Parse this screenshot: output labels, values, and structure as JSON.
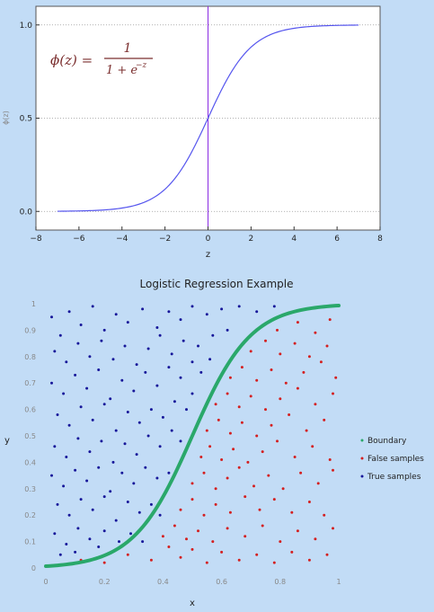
{
  "chart_data": [
    {
      "type": "line",
      "title": "",
      "annotation": {
        "lhs": "ϕ(z) =",
        "numerator": "1",
        "denominator_base": "1 + e",
        "denominator_exp": "−z"
      },
      "xlabel": "z",
      "ylabel": "ϕ(z)",
      "xlim": [
        -8,
        8
      ],
      "ylim": [
        -0.1,
        1.1
      ],
      "x_ticks": [
        "−8",
        "−6",
        "−4",
        "−2",
        "0",
        "2",
        "4",
        "6",
        "8"
      ],
      "y_ticks": [
        "0.0",
        "0.5",
        "1.0"
      ],
      "grid": "dotted horizontal",
      "vertical_line_at": 0,
      "series": [
        {
          "function": "sigmoid",
          "x": [
            -7,
            -6,
            -5,
            -4,
            -3,
            -2,
            -1,
            0,
            1,
            2,
            3,
            4,
            5,
            6,
            7
          ],
          "y": [
            0.0009,
            0.0025,
            0.0067,
            0.018,
            0.047,
            0.119,
            0.269,
            0.5,
            0.731,
            0.881,
            0.953,
            0.982,
            0.993,
            0.9975,
            0.9991
          ],
          "color": "#5555ee"
        }
      ]
    },
    {
      "type": "scatter",
      "title": "Logistic Regression Example",
      "xlabel": "x",
      "ylabel": "y",
      "xlim": [
        0,
        1
      ],
      "ylim": [
        0,
        1
      ],
      "x_ticks": [
        "0",
        "0.2",
        "0.4",
        "0.6",
        "0.8",
        "1"
      ],
      "y_ticks": [
        "0",
        "0.1",
        "0.2",
        "0.3",
        "0.4",
        "0.5",
        "0.6",
        "0.7",
        "0.8",
        "0.9",
        "1"
      ],
      "legend_position": "right",
      "boundary": {
        "x": [
          0,
          0.1,
          0.2,
          0.3,
          0.4,
          0.45,
          0.5,
          0.55,
          0.6,
          0.7,
          0.8,
          0.9,
          1
        ],
        "y": [
          0.007,
          0.018,
          0.047,
          0.119,
          0.269,
          0.377,
          0.5,
          0.623,
          0.731,
          0.881,
          0.953,
          0.982,
          0.993
        ]
      },
      "series": [
        {
          "name": "Boundary",
          "color": "#2aa86a"
        },
        {
          "name": "False samples",
          "color": "#d42020"
        },
        {
          "name": "True samples",
          "color": "#17179a"
        }
      ],
      "true_points": [
        [
          0.02,
          0.95
        ],
        [
          0.05,
          0.88
        ],
        [
          0.08,
          0.97
        ],
        [
          0.12,
          0.92
        ],
        [
          0.16,
          0.99
        ],
        [
          0.2,
          0.9
        ],
        [
          0.24,
          0.96
        ],
        [
          0.28,
          0.93
        ],
        [
          0.33,
          0.98
        ],
        [
          0.38,
          0.91
        ],
        [
          0.42,
          0.97
        ],
        [
          0.46,
          0.94
        ],
        [
          0.5,
          0.99
        ],
        [
          0.55,
          0.96
        ],
        [
          0.6,
          0.98
        ],
        [
          0.66,
          0.99
        ],
        [
          0.72,
          0.97
        ],
        [
          0.78,
          0.99
        ],
        [
          0.03,
          0.82
        ],
        [
          0.07,
          0.78
        ],
        [
          0.11,
          0.85
        ],
        [
          0.15,
          0.8
        ],
        [
          0.19,
          0.86
        ],
        [
          0.23,
          0.79
        ],
        [
          0.27,
          0.84
        ],
        [
          0.31,
          0.77
        ],
        [
          0.35,
          0.83
        ],
        [
          0.39,
          0.88
        ],
        [
          0.43,
          0.81
        ],
        [
          0.47,
          0.86
        ],
        [
          0.52,
          0.84
        ],
        [
          0.57,
          0.88
        ],
        [
          0.62,
          0.9
        ],
        [
          0.02,
          0.7
        ],
        [
          0.06,
          0.66
        ],
        [
          0.1,
          0.73
        ],
        [
          0.14,
          0.68
        ],
        [
          0.18,
          0.75
        ],
        [
          0.22,
          0.64
        ],
        [
          0.26,
          0.71
        ],
        [
          0.3,
          0.67
        ],
        [
          0.34,
          0.74
        ],
        [
          0.38,
          0.69
        ],
        [
          0.42,
          0.76
        ],
        [
          0.46,
          0.72
        ],
        [
          0.5,
          0.78
        ],
        [
          0.53,
          0.74
        ],
        [
          0.56,
          0.79
        ],
        [
          0.04,
          0.58
        ],
        [
          0.08,
          0.54
        ],
        [
          0.12,
          0.61
        ],
        [
          0.16,
          0.56
        ],
        [
          0.2,
          0.62
        ],
        [
          0.24,
          0.52
        ],
        [
          0.28,
          0.59
        ],
        [
          0.32,
          0.55
        ],
        [
          0.36,
          0.6
        ],
        [
          0.4,
          0.57
        ],
        [
          0.44,
          0.63
        ],
        [
          0.48,
          0.6
        ],
        [
          0.5,
          0.66
        ],
        [
          0.03,
          0.46
        ],
        [
          0.07,
          0.42
        ],
        [
          0.11,
          0.49
        ],
        [
          0.15,
          0.44
        ],
        [
          0.19,
          0.48
        ],
        [
          0.23,
          0.4
        ],
        [
          0.27,
          0.47
        ],
        [
          0.31,
          0.43
        ],
        [
          0.35,
          0.5
        ],
        [
          0.39,
          0.46
        ],
        [
          0.43,
          0.52
        ],
        [
          0.46,
          0.48
        ],
        [
          0.02,
          0.35
        ],
        [
          0.06,
          0.31
        ],
        [
          0.1,
          0.37
        ],
        [
          0.14,
          0.33
        ],
        [
          0.18,
          0.38
        ],
        [
          0.22,
          0.29
        ],
        [
          0.26,
          0.36
        ],
        [
          0.3,
          0.32
        ],
        [
          0.34,
          0.38
        ],
        [
          0.38,
          0.34
        ],
        [
          0.42,
          0.36
        ],
        [
          0.04,
          0.24
        ],
        [
          0.08,
          0.2
        ],
        [
          0.12,
          0.26
        ],
        [
          0.16,
          0.22
        ],
        [
          0.2,
          0.27
        ],
        [
          0.24,
          0.18
        ],
        [
          0.28,
          0.25
        ],
        [
          0.32,
          0.21
        ],
        [
          0.36,
          0.24
        ],
        [
          0.39,
          0.2
        ],
        [
          0.03,
          0.13
        ],
        [
          0.07,
          0.09
        ],
        [
          0.11,
          0.15
        ],
        [
          0.15,
          0.11
        ],
        [
          0.2,
          0.14
        ],
        [
          0.25,
          0.1
        ],
        [
          0.29,
          0.13
        ],
        [
          0.33,
          0.1
        ],
        [
          0.05,
          0.05
        ],
        [
          0.1,
          0.06
        ],
        [
          0.18,
          0.08
        ]
      ],
      "false_points": [
        [
          0.12,
          0.03
        ],
        [
          0.2,
          0.02
        ],
        [
          0.28,
          0.05
        ],
        [
          0.36,
          0.03
        ],
        [
          0.42,
          0.08
        ],
        [
          0.46,
          0.04
        ],
        [
          0.5,
          0.07
        ],
        [
          0.55,
          0.02
        ],
        [
          0.6,
          0.06
        ],
        [
          0.66,
          0.03
        ],
        [
          0.72,
          0.05
        ],
        [
          0.78,
          0.02
        ],
        [
          0.84,
          0.06
        ],
        [
          0.9,
          0.03
        ],
        [
          0.96,
          0.05
        ],
        [
          0.4,
          0.12
        ],
        [
          0.44,
          0.16
        ],
        [
          0.48,
          0.11
        ],
        [
          0.52,
          0.14
        ],
        [
          0.57,
          0.1
        ],
        [
          0.62,
          0.15
        ],
        [
          0.68,
          0.12
        ],
        [
          0.74,
          0.16
        ],
        [
          0.8,
          0.1
        ],
        [
          0.86,
          0.14
        ],
        [
          0.92,
          0.11
        ],
        [
          0.98,
          0.15
        ],
        [
          0.46,
          0.22
        ],
        [
          0.5,
          0.26
        ],
        [
          0.54,
          0.2
        ],
        [
          0.58,
          0.24
        ],
        [
          0.63,
          0.21
        ],
        [
          0.68,
          0.27
        ],
        [
          0.73,
          0.22
        ],
        [
          0.78,
          0.26
        ],
        [
          0.84,
          0.21
        ],
        [
          0.9,
          0.25
        ],
        [
          0.95,
          0.2
        ],
        [
          0.5,
          0.32
        ],
        [
          0.54,
          0.36
        ],
        [
          0.58,
          0.3
        ],
        [
          0.62,
          0.34
        ],
        [
          0.66,
          0.38
        ],
        [
          0.71,
          0.31
        ],
        [
          0.76,
          0.35
        ],
        [
          0.81,
          0.3
        ],
        [
          0.87,
          0.36
        ],
        [
          0.93,
          0.32
        ],
        [
          0.98,
          0.37
        ],
        [
          0.53,
          0.42
        ],
        [
          0.56,
          0.46
        ],
        [
          0.6,
          0.41
        ],
        [
          0.64,
          0.45
        ],
        [
          0.69,
          0.4
        ],
        [
          0.74,
          0.44
        ],
        [
          0.79,
          0.48
        ],
        [
          0.85,
          0.42
        ],
        [
          0.91,
          0.46
        ],
        [
          0.97,
          0.41
        ],
        [
          0.55,
          0.52
        ],
        [
          0.59,
          0.56
        ],
        [
          0.63,
          0.51
        ],
        [
          0.67,
          0.55
        ],
        [
          0.72,
          0.5
        ],
        [
          0.77,
          0.54
        ],
        [
          0.83,
          0.58
        ],
        [
          0.89,
          0.52
        ],
        [
          0.95,
          0.56
        ],
        [
          0.58,
          0.62
        ],
        [
          0.62,
          0.66
        ],
        [
          0.66,
          0.61
        ],
        [
          0.7,
          0.65
        ],
        [
          0.75,
          0.6
        ],
        [
          0.8,
          0.64
        ],
        [
          0.86,
          0.68
        ],
        [
          0.92,
          0.62
        ],
        [
          0.98,
          0.66
        ],
        [
          0.63,
          0.72
        ],
        [
          0.67,
          0.76
        ],
        [
          0.72,
          0.71
        ],
        [
          0.77,
          0.75
        ],
        [
          0.82,
          0.7
        ],
        [
          0.88,
          0.74
        ],
        [
          0.94,
          0.78
        ],
        [
          0.99,
          0.72
        ],
        [
          0.7,
          0.82
        ],
        [
          0.75,
          0.86
        ],
        [
          0.8,
          0.81
        ],
        [
          0.85,
          0.85
        ],
        [
          0.9,
          0.8
        ],
        [
          0.96,
          0.84
        ],
        [
          0.79,
          0.9
        ],
        [
          0.86,
          0.93
        ],
        [
          0.92,
          0.89
        ],
        [
          0.97,
          0.94
        ]
      ]
    }
  ]
}
